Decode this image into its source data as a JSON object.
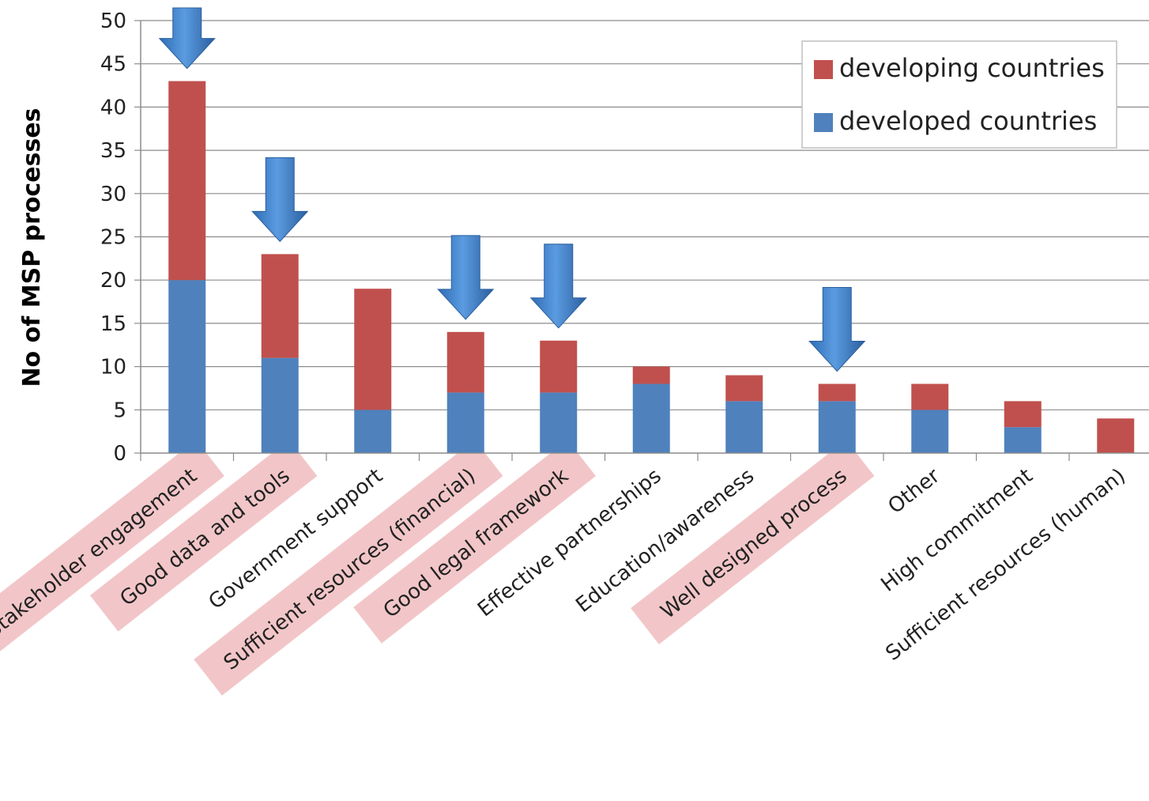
{
  "chart_data": {
    "type": "bar",
    "stacked": true,
    "ylabel": "No of MSP processes",
    "xlabel": "",
    "ylim": [
      0,
      50
    ],
    "yticks": [
      0,
      5,
      10,
      15,
      20,
      25,
      30,
      35,
      40,
      45,
      50
    ],
    "grid": true,
    "legend_position": "top-right",
    "categories": [
      "Stakeholder engagement",
      "Good data and tools",
      "Government support",
      "Sufficient resources (financial)",
      "Good legal framework",
      "Effective partnerships",
      "Education/awareness",
      "Well designed process",
      "Other",
      "High commitment",
      "Sufficient resources (human)"
    ],
    "series": [
      {
        "name": "developed countries",
        "color": "#4f81bd",
        "values": [
          20,
          11,
          5,
          7,
          7,
          8,
          6,
          6,
          5,
          3,
          0
        ]
      },
      {
        "name": "developing countries",
        "color": "#c0504d",
        "values": [
          23,
          12,
          14,
          7,
          6,
          2,
          3,
          2,
          3,
          3,
          4
        ]
      }
    ],
    "legend_order": [
      "developing countries",
      "developed countries"
    ],
    "highlighted_categories": [
      0,
      1,
      3,
      4,
      7
    ],
    "highlight_color": "#f2c6c8",
    "arrow_color": "#3a7bc8"
  }
}
